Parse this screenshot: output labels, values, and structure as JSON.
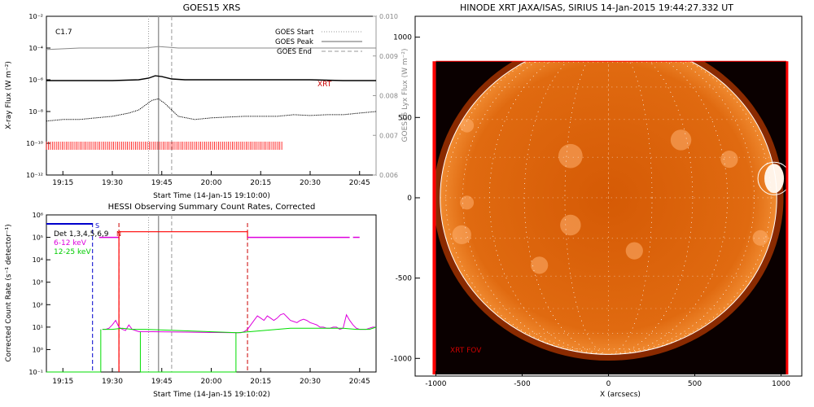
{
  "chart_data": [
    {
      "type": "line",
      "title": "GOES15 XRS",
      "xlabel": "Start Time (14-Jan-15 19:10:00)",
      "ylabel": "X-ray Flux (W m⁻²)",
      "ylabel_right": "GOES15 Lyx Flux (W m⁻²)",
      "class_label": "C1.7",
      "xrt_label": "XRT",
      "x_ticks": [
        "19:15",
        "19:30",
        "19:45",
        "20:00",
        "20:15",
        "20:30",
        "20:45"
      ],
      "x_tick_minutes": [
        5,
        20,
        35,
        50,
        65,
        80,
        95
      ],
      "xlim_minutes": [
        0,
        100
      ],
      "ylim_log10": [
        -12,
        -2
      ],
      "y_ticks": [
        "10⁻²",
        "10⁻⁴",
        "10⁻⁶",
        "10⁻⁸",
        "10⁻¹⁰",
        "10⁻¹²"
      ],
      "y_tick_exponents": [
        -2,
        -4,
        -6,
        -8,
        -10,
        -12
      ],
      "ylim_right": [
        0.006,
        0.01
      ],
      "y_right_ticks": [
        "0.010",
        "0.009",
        "0.008",
        "0.007",
        "0.006"
      ],
      "legend": [
        {
          "name": "GOES Start",
          "style": "dotted"
        },
        {
          "name": "GOES Peak",
          "style": "solid"
        },
        {
          "name": "GOES End",
          "style": "dashed"
        }
      ],
      "event_lines_minutes": {
        "start": 31,
        "peak": 34,
        "end": 38
      },
      "series": [
        {
          "name": "Lyman-alpha",
          "color": "#888888",
          "x": [
            0,
            10,
            20,
            30,
            34,
            40,
            50,
            60,
            70,
            80,
            90,
            100
          ],
          "y": [
            -4.1,
            -4.0,
            -4.0,
            -4.0,
            -3.9,
            -4.0,
            -4.0,
            -4.0,
            -4.0,
            -4.0,
            -4.0,
            -4.0
          ]
        },
        {
          "name": "long channel",
          "color": "#000000",
          "x": [
            0,
            10,
            20,
            28,
            31,
            33,
            35,
            38,
            42,
            50,
            60,
            70,
            80,
            90,
            100
          ],
          "y": [
            -6.05,
            -6.05,
            -6.05,
            -6.0,
            -5.9,
            -5.75,
            -5.8,
            -5.95,
            -6.0,
            -6.0,
            -6.0,
            -6.0,
            -6.0,
            -6.05,
            -6.05
          ]
        },
        {
          "name": "short channel",
          "color": "#000000",
          "x": [
            0,
            5,
            10,
            15,
            20,
            25,
            28,
            30,
            32,
            34,
            36,
            38,
            40,
            45,
            50,
            55,
            60,
            65,
            70,
            75,
            80,
            85,
            90,
            95,
            100
          ],
          "y": [
            -8.6,
            -8.5,
            -8.5,
            -8.4,
            -8.3,
            -8.1,
            -7.9,
            -7.6,
            -7.3,
            -7.2,
            -7.5,
            -7.9,
            -8.3,
            -8.5,
            -8.4,
            -8.35,
            -8.3,
            -8.3,
            -8.3,
            -8.2,
            -8.25,
            -8.2,
            -8.2,
            -8.1,
            -8.0
          ]
        }
      ],
      "xrt_obs_minutes": [
        0,
        72
      ]
    },
    {
      "type": "line",
      "title": "HESSI Observing Summary Count Rates, Corrected",
      "xlabel": "Start Time (14-Jan-15 19:10:02)",
      "ylabel": "Corrected Count Rate (s⁻¹ detector⁻¹)",
      "x_ticks": [
        "19:15",
        "19:30",
        "19:45",
        "20:00",
        "20:15",
        "20:30",
        "20:45"
      ],
      "x_tick_minutes": [
        5,
        20,
        35,
        50,
        65,
        80,
        95
      ],
      "xlim_minutes": [
        0,
        100
      ],
      "ylim_log10": [
        -1,
        6
      ],
      "y_ticks": [
        "10⁶",
        "10⁵",
        "10⁴",
        "10³",
        "10²",
        "10¹",
        "10⁰",
        "10⁻¹"
      ],
      "y_tick_exponents": [
        6,
        5,
        4,
        3,
        2,
        1,
        0,
        -1
      ],
      "legend": [
        {
          "name": "Det 1,3,4,5,6,9",
          "color": "#000000"
        },
        {
          "name": "6-12 keV",
          "color": "#dd00dd"
        },
        {
          "name": "12-25 keV",
          "color": "#00dd00"
        }
      ],
      "flag_labels": [
        "S",
        "N"
      ],
      "event_lines_minutes": {
        "start": 31,
        "peak": 34,
        "end": 38
      },
      "flag_lines_minutes": [
        {
          "x": 14,
          "color": "#0000cc"
        },
        {
          "x": 22,
          "color": "#cc0000"
        },
        {
          "x": 61,
          "color": "#cc0000"
        }
      ],
      "series": [
        {
          "name": "6-12 keV",
          "color": "#dd00dd",
          "x": [
            17,
            18,
            19,
            20,
            21,
            22,
            23,
            24,
            25,
            26,
            27,
            28,
            29,
            30,
            58,
            59,
            60,
            61,
            62,
            63,
            64,
            65,
            66,
            67,
            68,
            69,
            70,
            71,
            72,
            73,
            74,
            75,
            76,
            77,
            78,
            79,
            80,
            81,
            82,
            83,
            84,
            85,
            86,
            87,
            88,
            89,
            90,
            91,
            92,
            93,
            94,
            95,
            96,
            97,
            98,
            99,
            100
          ],
          "y": [
            0.9,
            0.9,
            0.95,
            1.1,
            1.3,
            1.0,
            0.9,
            0.85,
            1.1,
            0.9,
            0.85,
            0.8,
            0.8,
            0.8,
            0.75,
            0.75,
            0.8,
            0.9,
            1.1,
            1.3,
            1.5,
            1.4,
            1.3,
            1.5,
            1.4,
            1.3,
            1.4,
            1.55,
            1.6,
            1.45,
            1.3,
            1.25,
            1.2,
            1.3,
            1.35,
            1.3,
            1.2,
            1.15,
            1.1,
            1.0,
            1.0,
            0.95,
            0.95,
            1.0,
            1.0,
            0.9,
            0.95,
            1.55,
            1.3,
            1.1,
            0.95,
            0.9,
            0.9,
            0.9,
            0.95,
            1.0,
            1.0
          ]
        },
        {
          "name": "12-25 keV",
          "color": "#00dd00",
          "x": [
            17,
            20,
            23,
            26,
            29,
            30,
            58,
            62,
            66,
            70,
            74,
            78,
            82,
            86,
            90,
            94,
            98,
            100
          ],
          "y": [
            0.9,
            0.9,
            0.95,
            0.9,
            0.9,
            0.9,
            0.75,
            0.8,
            0.85,
            0.9,
            0.95,
            0.95,
            0.95,
            0.95,
            0.95,
            0.9,
            0.9,
            1.0
          ]
        }
      ],
      "count_rate_level": {
        "color": "#ff0000",
        "x": [
          22,
          61
        ],
        "y": 5.25
      },
      "det_level": {
        "color": "#0000cc",
        "x": [
          0,
          14
        ],
        "y": 5.6
      },
      "magenta_level": {
        "color": "#dd00dd",
        "x": [
          16,
          22
        ],
        "y": 5.0
      }
    },
    {
      "type": "heatmap",
      "title": "HINODE XRT JAXA/ISAS, SIRIUS 14-Jan-2015 19:44:27.332 UT",
      "xlabel": "X (arcsecs)",
      "ylabel": "",
      "fov_label": "XRT FOV",
      "x_ticks": [
        "-1000",
        "-500",
        "0",
        "500",
        "1000"
      ],
      "x_tick_values": [
        -1000,
        -500,
        0,
        500,
        1000
      ],
      "y_ticks": [
        "1000",
        "500",
        "0",
        "-500",
        "-1000"
      ],
      "y_tick_values": [
        1000,
        500,
        0,
        -500,
        -1000
      ],
      "xlim": [
        -1120,
        1120
      ],
      "ylim": [
        -1110,
        1130
      ],
      "solar_radius_arcsec": 975,
      "colors": {
        "background": "#ffffff",
        "disk": "#d55a05",
        "bright": "#ffb070",
        "frame": "#ff0000"
      }
    }
  ]
}
